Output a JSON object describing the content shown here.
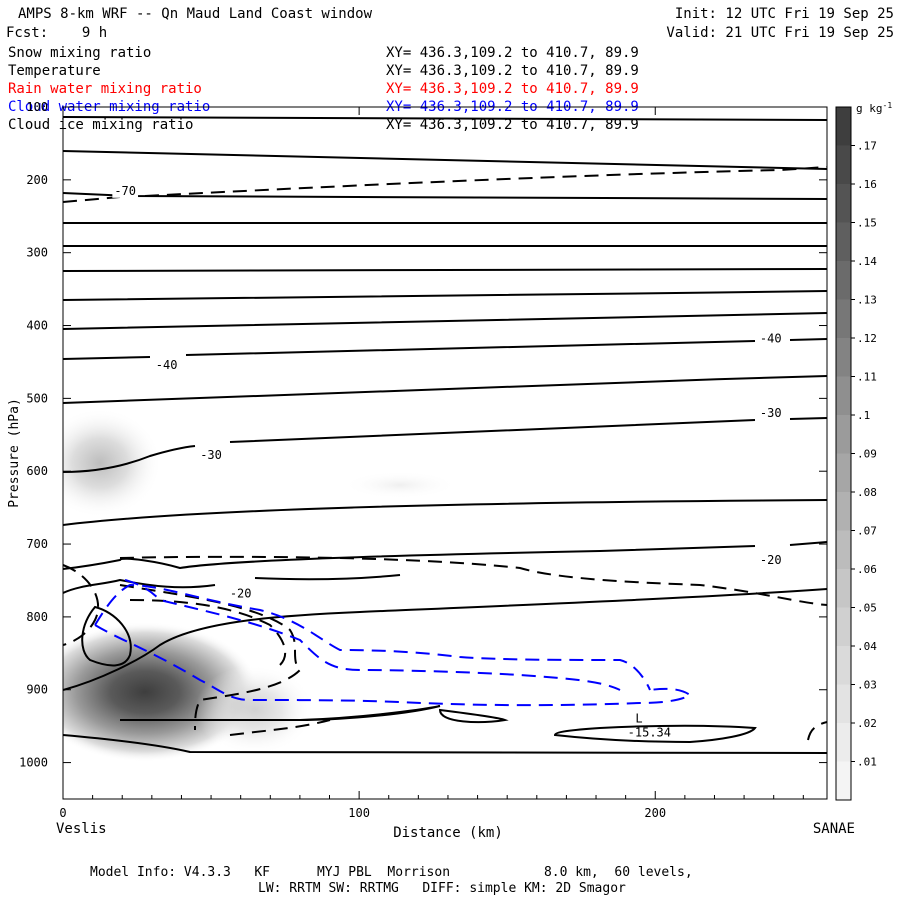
{
  "header": {
    "title": "AMPS 8-km WRF -- Qn Maud Land Coast window",
    "forecast": "Fcst:    9 h",
    "init": "Init: 12 UTC Fri 19 Sep 25",
    "valid": "Valid: 21 UTC Fri 19 Sep 25"
  },
  "legend": [
    {
      "label": "Snow mixing ratio",
      "xy": "XY= 436.3,109.2 to 410.7, 89.9",
      "color": "#000000"
    },
    {
      "label": "Temperature",
      "xy": "XY= 436.3,109.2 to 410.7, 89.9",
      "color": "#000000"
    },
    {
      "label": "Rain water mixing ratio",
      "xy": "XY= 436.3,109.2 to 410.7, 89.9",
      "color": "#ff0000"
    },
    {
      "label": "Cloud water mixing ratio",
      "xy": "XY= 436.3,109.2 to 410.7, 89.9",
      "color": "#0000ff"
    },
    {
      "label": "Cloud ice mixing ratio",
      "xy": "XY= 436.3,109.2 to 410.7, 89.9",
      "color": "#000000"
    }
  ],
  "footer": {
    "line1": "Model Info: V4.3.3   KF      MYJ PBL  Morrison            8.0 km,  60 levels,",
    "line2": "LW: RRTM SW: RRTMG   DIFF: simple KM: 2D Smagor"
  },
  "chart_data": {
    "type": "cross-section contour",
    "xlabel": "Distance (km)",
    "ylabel": "Pressure (hPa)",
    "xlim": [
      0,
      258
    ],
    "ylim": [
      1050,
      100
    ],
    "x_ticks": [
      0,
      100,
      200
    ],
    "y_ticks": [
      100,
      200,
      300,
      400,
      500,
      600,
      700,
      800,
      900,
      1000
    ],
    "left_endpoint": "Veslis",
    "right_endpoint": "SANAE",
    "colorbar": {
      "unit": "g kg",
      "unit_exp": "-1",
      "levels": [
        ".01",
        ".02",
        ".03",
        ".04",
        ".05",
        ".06",
        ".07",
        ".08",
        ".09",
        ".1",
        ".11",
        ".12",
        ".13",
        ".14",
        ".15",
        ".16",
        ".17"
      ],
      "colors": [
        "#f4f4f4",
        "#ececec",
        "#e3e3e3",
        "#dadada",
        "#d0d0d0",
        "#c6c6c6",
        "#bcbcbc",
        "#b1b1b1",
        "#a6a6a6",
        "#9b9b9b",
        "#8f8f8f",
        "#838383",
        "#777777",
        "#6b6b6b",
        "#5f5f5f",
        "#545454",
        "#494949",
        "#3e3e3e"
      ]
    },
    "temperature_labels": [
      {
        "text": "-70",
        "x": 21,
        "p": 215
      },
      {
        "text": "-40",
        "x": 35,
        "p": 454
      },
      {
        "text": "-30",
        "x": 50,
        "p": 578
      },
      {
        "text": "-20",
        "x": 60,
        "p": 768
      },
      {
        "text": "-40",
        "x": 239,
        "p": 418
      },
      {
        "text": "-30",
        "x": 239,
        "p": 520
      },
      {
        "text": "-20",
        "x": 239,
        "p": 722
      }
    ],
    "minimum_marker": {
      "symbol": "L",
      "value": "-15.34",
      "x": 198,
      "p": 948
    }
  }
}
